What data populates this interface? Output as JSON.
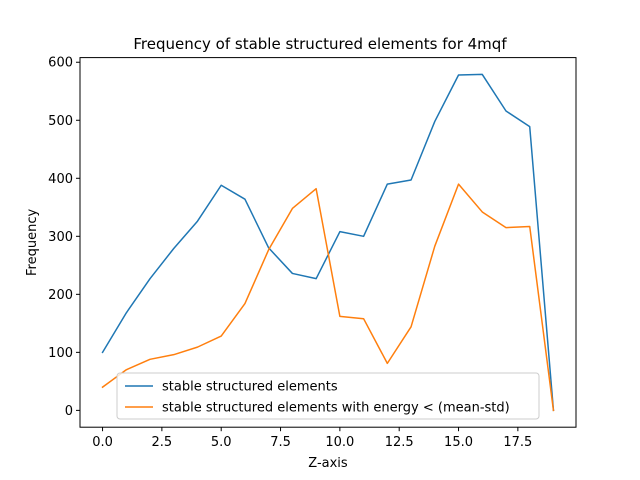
{
  "chart_data": {
    "type": "line",
    "title": "Frequency of stable structured elements for 4mqf",
    "xlabel": "Z-axis",
    "ylabel": "Frequency",
    "xlim": [
      -0.95,
      19.95
    ],
    "ylim": [
      -29,
      608
    ],
    "xticks": [
      0,
      2.5,
      5,
      7.5,
      10,
      12.5,
      15,
      17.5
    ],
    "xtick_labels": [
      "0.0",
      "2.5",
      "5.0",
      "7.5",
      "10.0",
      "12.5",
      "15.0",
      "17.5"
    ],
    "yticks": [
      0,
      100,
      200,
      300,
      400,
      500,
      600
    ],
    "ytick_labels": [
      "0",
      "100",
      "200",
      "300",
      "400",
      "500",
      "600"
    ],
    "grid": false,
    "legend_position": "lower-center",
    "x": [
      0,
      1,
      2,
      3,
      4,
      5,
      6,
      7,
      8,
      9,
      10,
      11,
      12,
      13,
      14,
      15,
      16,
      17,
      18,
      19
    ],
    "series": [
      {
        "name": "stable structured elements",
        "color": "#1f77b4",
        "values": [
          100,
          168,
          227,
          279,
          326,
          388,
          364,
          280,
          236,
          227,
          308,
          300,
          390,
          397,
          498,
          578,
          579,
          516,
          489,
          0
        ]
      },
      {
        "name": "stable structured elements with energy < (mean-std)",
        "color": "#ff7f0e",
        "values": [
          40,
          70,
          88,
          96,
          109,
          128,
          184,
          277,
          348,
          382,
          162,
          158,
          81,
          144,
          283,
          390,
          342,
          315,
          317,
          0
        ]
      }
    ]
  }
}
